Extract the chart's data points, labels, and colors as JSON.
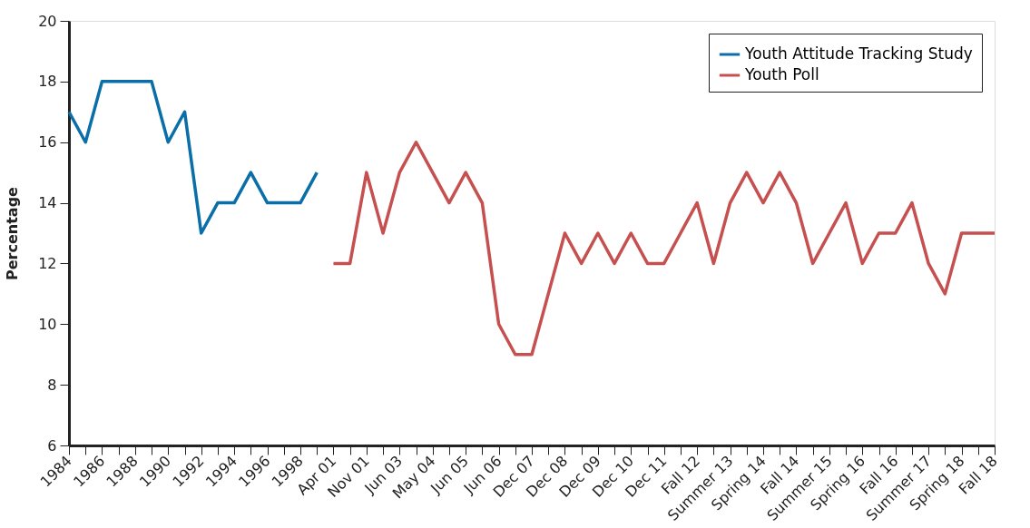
{
  "chart_data": {
    "type": "line",
    "ylabel": "Percentage",
    "categories": [
      "1984",
      null,
      "1986",
      null,
      "1988",
      null,
      "1990",
      null,
      "1992",
      null,
      "1994",
      null,
      "1996",
      null,
      "1998",
      null,
      "Apr 01",
      null,
      "Nov 01",
      null,
      "Jun 03",
      null,
      "May 04",
      null,
      "Jun 05",
      null,
      "Jun 06",
      null,
      "Dec 07",
      null,
      "Dec 08",
      null,
      "Dec 09",
      null,
      "Dec 10",
      null,
      "Dec 11",
      null,
      "Fall 12",
      null,
      "Summer 13",
      null,
      "Spring 14",
      null,
      "Fall 14",
      null,
      "Summer 15",
      null,
      "Spring 16",
      null,
      "Fall 16",
      null,
      "Summer 17",
      null,
      "Spring 18",
      null,
      "Fall 18"
    ],
    "series": [
      {
        "name": "Youth Attitude Tracking Study",
        "color": "#0a6fa8",
        "values": [
          17,
          16,
          18,
          18,
          18,
          18,
          16,
          17,
          13,
          14,
          14,
          15,
          14,
          14,
          14,
          15,
          null,
          null,
          null,
          null,
          null,
          null,
          null,
          null,
          null,
          null,
          null,
          null,
          null,
          null,
          null,
          null,
          null,
          null,
          null,
          null,
          null,
          null,
          null,
          null,
          null,
          null,
          null,
          null,
          null,
          null,
          null,
          null,
          null,
          null,
          null,
          null,
          null,
          null,
          null,
          null,
          null
        ]
      },
      {
        "name": "Youth Poll",
        "color": "#c64f4f",
        "values": [
          null,
          null,
          null,
          null,
          null,
          null,
          null,
          null,
          null,
          null,
          null,
          null,
          null,
          null,
          null,
          null,
          12,
          12,
          15,
          13,
          15,
          16,
          15,
          14,
          15,
          14,
          10,
          9,
          9,
          11,
          13,
          12,
          13,
          12,
          13,
          12,
          12,
          13,
          14,
          12,
          14,
          15,
          14,
          15,
          14,
          12,
          13,
          14,
          12,
          13,
          13,
          14,
          12,
          11,
          13,
          13,
          13
        ]
      }
    ],
    "ylim": [
      6,
      20
    ],
    "yticks": [
      6,
      8,
      10,
      12,
      14,
      16,
      18,
      20
    ],
    "grid": false,
    "legend": "top right",
    "marker": "none",
    "line_style": "solid"
  }
}
